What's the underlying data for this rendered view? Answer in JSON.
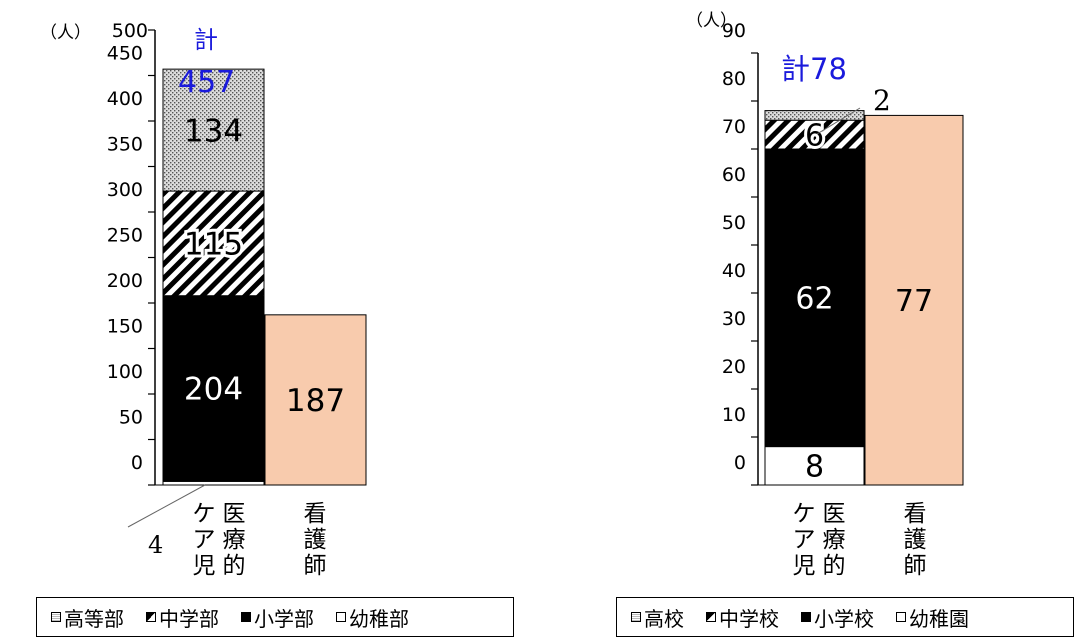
{
  "charts": [
    {
      "unit": "（人）",
      "total_label": "計",
      "total_value": "457",
      "callout": "4",
      "legend": [
        {
          "label": "高等部",
          "pattern": "dots"
        },
        {
          "label": "中学部",
          "pattern": "diag"
        },
        {
          "label": "小学部",
          "pattern": "solid"
        },
        {
          "label": "幼稚部",
          "pattern": "empty"
        }
      ]
    },
    {
      "unit": "（人）",
      "total_label": "計78",
      "callout": "2",
      "legend": [
        {
          "label": "高校",
          "pattern": "dots"
        },
        {
          "label": "中学校",
          "pattern": "diag"
        },
        {
          "label": "小学校",
          "pattern": "solid"
        },
        {
          "label": "幼稚園",
          "pattern": "empty"
        }
      ]
    }
  ],
  "chart_data": [
    {
      "type": "bar",
      "stacked": true,
      "categories": [
        "医療的ケア児",
        "看護師"
      ],
      "category_columns": [
        [
          "医療的",
          "ケア児"
        ],
        [
          "看護師"
        ]
      ],
      "ylabel": "（人）",
      "ylim": [
        0,
        500
      ],
      "yticks": [
        0,
        50,
        100,
        150,
        200,
        250,
        300,
        350,
        400,
        450,
        500
      ],
      "series": [
        {
          "name": "幼稚部",
          "values": [
            4,
            null
          ],
          "label": "4",
          "color": "#ffffff",
          "pattern": "empty"
        },
        {
          "name": "小学部",
          "values": [
            204,
            null
          ],
          "label": "204",
          "color": "#000000",
          "pattern": "solid"
        },
        {
          "name": "中学部",
          "values": [
            115,
            null
          ],
          "label": "115",
          "color": "#ffffff",
          "pattern": "diag"
        },
        {
          "name": "高等部",
          "values": [
            134,
            null
          ],
          "label": "134",
          "color": "#d9d9d9",
          "pattern": "dots"
        },
        {
          "name": "",
          "values": [
            null,
            187
          ],
          "label": "187",
          "color": "#f8cbad",
          "pattern": "plain"
        }
      ],
      "totals": {
        "医療的ケア児": 457
      },
      "grid": false,
      "legend_position": "bottom"
    },
    {
      "type": "bar",
      "stacked": true,
      "categories": [
        "医療的ケア児",
        "看護師"
      ],
      "category_columns": [
        [
          "医療的",
          "ケア児"
        ],
        [
          "看護師"
        ]
      ],
      "ylabel": "（人）",
      "ylim": [
        0,
        90
      ],
      "yticks": [
        0,
        10,
        20,
        30,
        40,
        50,
        60,
        70,
        80,
        90
      ],
      "series": [
        {
          "name": "幼稚園",
          "values": [
            8,
            null
          ],
          "label": "8",
          "color": "#ffffff",
          "pattern": "empty"
        },
        {
          "name": "小学校",
          "values": [
            62,
            null
          ],
          "label": "62",
          "color": "#000000",
          "pattern": "solid"
        },
        {
          "name": "中学校",
          "values": [
            6,
            null
          ],
          "label": "6",
          "color": "#ffffff",
          "pattern": "diag"
        },
        {
          "name": "高校",
          "values": [
            2,
            null
          ],
          "label": "2",
          "color": "#d9d9d9",
          "pattern": "dots"
        },
        {
          "name": "",
          "values": [
            null,
            77
          ],
          "label": "77",
          "color": "#f8cbad",
          "pattern": "plain"
        }
      ],
      "totals": {
        "医療的ケア児": 78
      },
      "grid": false,
      "legend_position": "bottom"
    }
  ]
}
